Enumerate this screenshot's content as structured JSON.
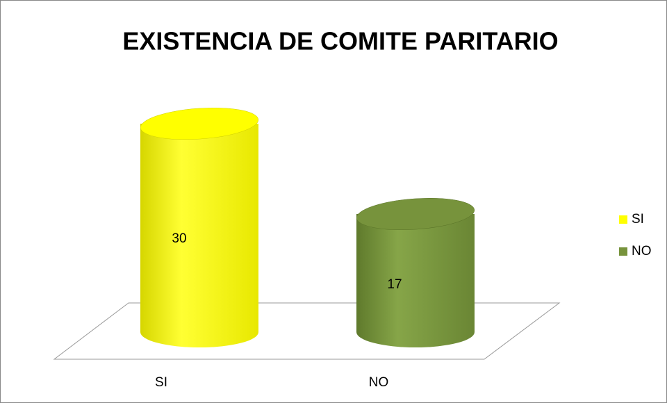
{
  "chart_data": {
    "type": "cylinder",
    "title": "EXISTENCIA DE COMITE PARITARIO",
    "categories": [
      "SI",
      "NO"
    ],
    "values": [
      30,
      17
    ],
    "colors": [
      "#ffff00",
      "#77933c"
    ]
  }
}
